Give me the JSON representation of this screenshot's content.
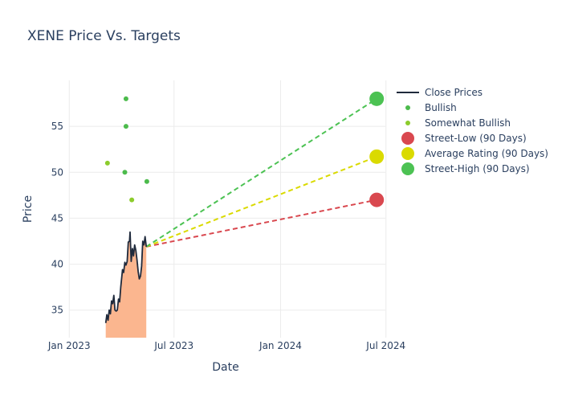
{
  "chart_data": {
    "type": "line",
    "title": "XENE Price Vs. Targets",
    "xlabel": "Date",
    "ylabel": "Price",
    "x_ticks": [
      "Jan 2023",
      "Jul 2023",
      "Jan 2024",
      "Jul 2024"
    ],
    "y_ticks": [
      35,
      40,
      45,
      50,
      55
    ],
    "xlim": [
      "2022-12-15",
      "2024-06-30"
    ],
    "ylim": [
      32,
      60
    ],
    "grid": true,
    "legend_position": "top-right",
    "colors": {
      "close": "#1f2a3c",
      "fill": "#fbb68f",
      "bullish": "#4cbb4c",
      "somewhat_bullish": "#8ccc2c",
      "street_low": "#d9484f",
      "average": "#dada00",
      "street_high": "#4cc253"
    },
    "series": [
      {
        "name": "Close Prices",
        "kind": "line",
        "points": [
          [
            "2023-03-05",
            33.6
          ],
          [
            "2023-03-07",
            34.5
          ],
          [
            "2023-03-09",
            33.9
          ],
          [
            "2023-03-11",
            35.0
          ],
          [
            "2023-03-13",
            34.6
          ],
          [
            "2023-03-15",
            36.0
          ],
          [
            "2023-03-17",
            35.7
          ],
          [
            "2023-03-19",
            36.6
          ],
          [
            "2023-03-21",
            35.0
          ],
          [
            "2023-03-23",
            34.9
          ],
          [
            "2023-03-25",
            35.0
          ],
          [
            "2023-03-27",
            36.2
          ],
          [
            "2023-03-29",
            35.9
          ],
          [
            "2023-03-31",
            37.5
          ],
          [
            "2023-04-03",
            39.4
          ],
          [
            "2023-04-05",
            39.1
          ],
          [
            "2023-04-07",
            40.2
          ],
          [
            "2023-04-09",
            39.9
          ],
          [
            "2023-04-11",
            40.3
          ],
          [
            "2023-04-13",
            42.4
          ],
          [
            "2023-04-15",
            42.5
          ],
          [
            "2023-04-16",
            43.5
          ],
          [
            "2023-04-18",
            40.3
          ],
          [
            "2023-04-20",
            41.7
          ],
          [
            "2023-04-22",
            40.9
          ],
          [
            "2023-04-24",
            42.1
          ],
          [
            "2023-04-26",
            41.5
          ],
          [
            "2023-04-28",
            40.5
          ],
          [
            "2023-04-30",
            39.2
          ],
          [
            "2023-05-02",
            38.4
          ],
          [
            "2023-05-04",
            38.7
          ],
          [
            "2023-05-06",
            39.8
          ],
          [
            "2023-05-08",
            42.5
          ],
          [
            "2023-05-10",
            42.1
          ],
          [
            "2023-05-12",
            43.0
          ],
          [
            "2023-05-14",
            41.9
          ]
        ]
      },
      {
        "name": "Bullish",
        "kind": "scatter",
        "points": [
          [
            "2023-04-09",
            58
          ],
          [
            "2023-04-09",
            55
          ],
          [
            "2023-04-07",
            50
          ],
          [
            "2023-05-15",
            49
          ]
        ]
      },
      {
        "name": "Somewhat Bullish",
        "kind": "scatter",
        "points": [
          [
            "2023-03-08",
            51
          ],
          [
            "2023-04-19",
            47
          ]
        ]
      },
      {
        "name": "Street-Low (90 Days)",
        "kind": "target",
        "start": [
          "2023-05-14",
          41.9
        ],
        "end": [
          "2024-06-15",
          47
        ]
      },
      {
        "name": "Average Rating (90 Days)",
        "kind": "target",
        "start": [
          "2023-05-14",
          41.9
        ],
        "end": [
          "2024-06-15",
          51.7
        ]
      },
      {
        "name": "Street-High (90 Days)",
        "kind": "target",
        "start": [
          "2023-05-14",
          41.9
        ],
        "end": [
          "2024-06-15",
          58
        ]
      }
    ]
  }
}
